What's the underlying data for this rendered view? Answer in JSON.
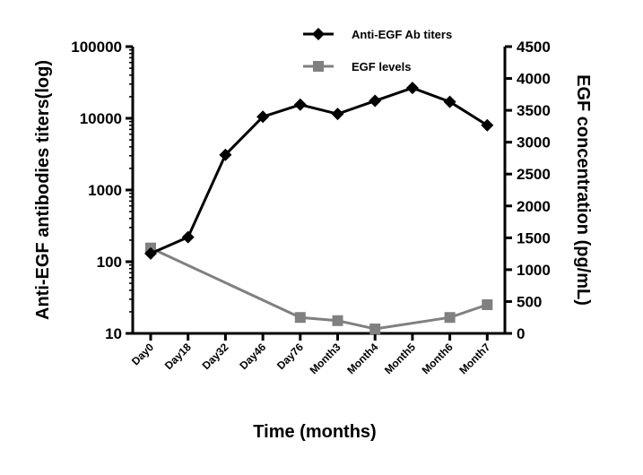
{
  "chart_data": {
    "type": "line",
    "categories": [
      "Day0",
      "Day18",
      "Day32",
      "Day46",
      "Day76",
      "Month3",
      "Month4",
      "Month5",
      "Month6",
      "Month7"
    ],
    "xlabel": "Time (months)",
    "ylabel_left": "Anti-EGF antibodies titers(log)",
    "ylabel_right": "EGF concentration (pg/mL)",
    "y_left": {
      "scale": "log",
      "range": [
        10,
        100000
      ],
      "ticks": [
        "10",
        "100",
        "1000",
        "10000",
        "100000"
      ]
    },
    "y_right": {
      "scale": "linear",
      "range": [
        0,
        4500
      ],
      "ticks": [
        "0",
        "500",
        "1000",
        "1500",
        "2000",
        "2500",
        "3000",
        "3500",
        "4000",
        "4500"
      ]
    },
    "grid": false,
    "legend_position": "top-right",
    "series": [
      {
        "name": "Anti-EGF Ab titers",
        "axis": "left",
        "marker": "diamond",
        "color": "#000000",
        "x": [
          "Day0",
          "Day18",
          "Day32",
          "Day46",
          "Day76",
          "Month3",
          "Month4",
          "Month5",
          "Month6",
          "Month7"
        ],
        "values": [
          130,
          220,
          3100,
          10500,
          15500,
          11500,
          17500,
          26500,
          17000,
          8000
        ]
      },
      {
        "name": "EGF levels",
        "axis": "right",
        "marker": "square",
        "color": "#808080",
        "x": [
          "Day0",
          "Day76",
          "Month3",
          "Month4",
          "Month6",
          "Month7"
        ],
        "values": [
          1340,
          250,
          200,
          70,
          250,
          450
        ]
      }
    ]
  }
}
